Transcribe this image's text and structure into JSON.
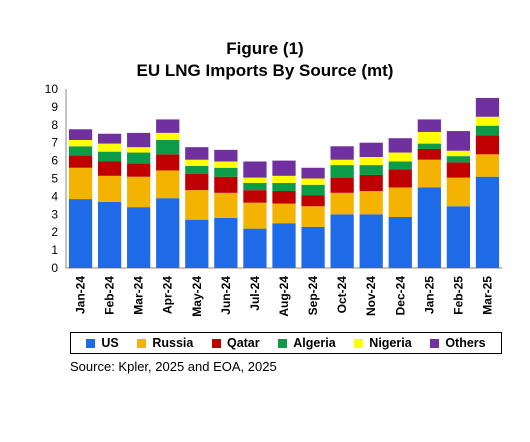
{
  "chart_data": {
    "type": "bar",
    "stacked": true,
    "title": "Figure (1)",
    "subtitle": "EU LNG Imports By Source (mt)",
    "xlabel": "",
    "ylabel": "",
    "ylim": [
      0,
      10
    ],
    "yticks": [
      0,
      1,
      2,
      3,
      4,
      5,
      6,
      7,
      8,
      9,
      10
    ],
    "grid": false,
    "legend_position": "bottom",
    "categories": [
      "Jan-24",
      "Feb-24",
      "Mar-24",
      "Apr-24",
      "May-24",
      "Jun-24",
      "Jul-24",
      "Aug-24",
      "Sep-24",
      "Oct-24",
      "Nov-24",
      "Dec-24",
      "Jan-25",
      "Feb-25",
      "Mar-25"
    ],
    "series": [
      {
        "name": "US",
        "color": "#1f6ae6",
        "values": [
          3.85,
          3.7,
          3.4,
          3.9,
          2.7,
          2.8,
          2.2,
          2.5,
          2.3,
          3.0,
          3.0,
          2.85,
          4.5,
          3.45,
          5.1
        ]
      },
      {
        "name": "Russia",
        "color": "#f5b301",
        "values": [
          1.75,
          1.45,
          1.7,
          1.55,
          1.65,
          1.4,
          1.45,
          1.1,
          1.15,
          1.2,
          1.3,
          1.65,
          1.55,
          1.6,
          1.25
        ]
      },
      {
        "name": "Qatar",
        "color": "#c00000",
        "values": [
          0.7,
          0.8,
          0.75,
          0.9,
          0.9,
          0.9,
          0.7,
          0.7,
          0.6,
          0.85,
          0.9,
          1.0,
          0.6,
          0.85,
          1.05
        ]
      },
      {
        "name": "Algeria",
        "color": "#0c9b48",
        "values": [
          0.5,
          0.55,
          0.6,
          0.8,
          0.45,
          0.5,
          0.4,
          0.45,
          0.6,
          0.7,
          0.55,
          0.45,
          0.3,
          0.35,
          0.55
        ]
      },
      {
        "name": "Nigeria",
        "color": "#ffff00",
        "values": [
          0.35,
          0.45,
          0.3,
          0.4,
          0.35,
          0.35,
          0.3,
          0.4,
          0.35,
          0.3,
          0.45,
          0.5,
          0.65,
          0.3,
          0.5
        ]
      },
      {
        "name": "Others",
        "color": "#7030a0",
        "values": [
          0.6,
          0.55,
          0.8,
          0.75,
          0.7,
          0.65,
          0.9,
          0.85,
          0.6,
          0.75,
          0.8,
          0.8,
          0.7,
          1.1,
          1.05
        ]
      }
    ],
    "source": "Source: Kpler, 2025 and EOA, 2025"
  }
}
